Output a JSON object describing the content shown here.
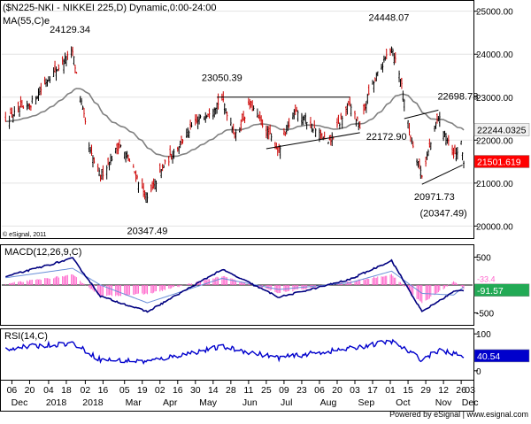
{
  "chart_data": {
    "type": "candlestick",
    "title": "($N225-NKI - NIKKEI 225,D) Dynamic,0:00-24:00",
    "indicator_label": "MA(55,C)e",
    "copyright": "© eSignal, 2011",
    "footer": "Powered by eSignal | www.esignal.com",
    "colors": {
      "up": "#000000",
      "down": "#cc0000",
      "ma": "#808080",
      "macd_line": "#000080",
      "macd_signal": "#6a8fd8",
      "macd_hist": "#ff66cc",
      "rsi_line": "#0000cc",
      "last_price_bg": "#ff0000",
      "ma_value_bg": "#f0f0f0",
      "macd_value_bg": "#22aa55",
      "rsi_value_bg": "#0000cc"
    },
    "price": {
      "ylim": [
        19740,
        25220
      ],
      "y_ticks": [
        20000,
        21000,
        22000,
        23000,
        24000,
        25000
      ],
      "y_tick_labels": [
        "20000.00",
        "21000.00",
        "22000.00",
        "23000.00",
        "24000.00",
        "25000.00"
      ],
      "last_price": 21501.619,
      "last_price_label": "21501.619",
      "ma_value": 22244.0325,
      "ma_value_label": "22244.0325",
      "annotations": [
        {
          "text": "24129.34",
          "x": "2018-01-23",
          "y": 24129.34
        },
        {
          "text": "23050.39",
          "x": "2018-05-21",
          "y": 23050.39
        },
        {
          "text": "24448.07",
          "x": "2018-10-02",
          "y": 24448.07
        },
        {
          "text": "22698.78",
          "x": "2018-11-08",
          "y": 22698.78
        },
        {
          "text": "22172.90",
          "x": "2018-09-07",
          "y": 22172.9
        },
        {
          "text": "20971.73",
          "x": "2018-10-26",
          "y": 20971.73
        },
        {
          "text": "20347.49",
          "x": "2018-03-23",
          "y": 20347.49
        },
        {
          "text": "(20347.49)",
          "x": "2018-11-26",
          "y": 20347.49
        }
      ],
      "trendlines": [
        {
          "x1": "2018-05-17",
          "y1": 23000,
          "x2": "2018-08-30",
          "y2": 23000
        },
        {
          "x1": "2018-06-25",
          "y1": 21800,
          "x2": "2018-09-07",
          "y2": 22172.9
        },
        {
          "x1": "2018-10-12",
          "y1": 22500,
          "x2": "2018-11-08",
          "y2": 22698.78
        },
        {
          "x1": "2018-10-26",
          "y1": 20971.73,
          "x2": "2018-11-27",
          "y2": 21420
        }
      ]
    },
    "macd": {
      "label": "MACD(12,26,9,C)",
      "ylim": [
        -700,
        700
      ],
      "y_ticks": [
        500,
        -500
      ],
      "y_tick_labels": [
        "500",
        "-500"
      ],
      "value": -91.57,
      "value_label": "-91.57",
      "signal_label": "-33.4"
    },
    "rsi": {
      "label": "RSI(14,C)",
      "ylim": [
        -22,
        110
      ],
      "y_ticks": [
        100,
        50,
        0
      ],
      "y_tick_labels": [
        "100",
        "50",
        "0"
      ],
      "value": 40.54,
      "value_label": "40.54"
    },
    "x_axis": {
      "days": [
        "06",
        "20",
        "04",
        "18",
        "02",
        "16",
        "05",
        "19",
        "02",
        "16",
        "30",
        "14",
        "28",
        "11",
        "25",
        "09",
        "23",
        "06",
        "20",
        "03",
        "17",
        "01",
        "15",
        "29",
        "12",
        "26"
      ],
      "day_dates": [
        "2017-12-06",
        "2017-12-20",
        "2018-01-04",
        "2018-01-18",
        "2018-02-02",
        "2018-02-16",
        "2018-03-05",
        "2018-03-19",
        "2018-04-02",
        "2018-04-16",
        "2018-04-30",
        "2018-05-14",
        "2018-05-28",
        "2018-06-11",
        "2018-06-25",
        "2018-07-09",
        "2018-07-23",
        "2018-08-06",
        "2018-08-20",
        "2018-09-03",
        "2018-09-17",
        "2018-10-01",
        "2018-10-15",
        "2018-10-29",
        "2018-11-12",
        "2018-11-26"
      ],
      "months": [
        "Dec",
        "2018",
        "2018",
        "Mar",
        "Apr",
        "May",
        "Jun",
        "Jul",
        "Aug",
        "Sep",
        "Oct",
        "Nov",
        "Dec"
      ],
      "month_dates": [
        "2017-12-12",
        "2018-01-10",
        "2018-02-08",
        "2018-03-12",
        "2018-04-10",
        "2018-05-10",
        "2018-06-12",
        "2018-07-11",
        "2018-08-13",
        "2018-09-12",
        "2018-10-11",
        "2018-11-12",
        "2018-12-03"
      ],
      "extra_day": "03",
      "extra_day_date": "2018-12-03"
    },
    "anchors": [
      {
        "date": "2017-12-01",
        "close": 22500
      },
      {
        "date": "2017-12-20",
        "close": 22800
      },
      {
        "date": "2018-01-04",
        "close": 23450
      },
      {
        "date": "2018-01-23",
        "close": 24050
      },
      {
        "date": "2018-02-06",
        "close": 21700
      },
      {
        "date": "2018-02-14",
        "close": 21150
      },
      {
        "date": "2018-03-01",
        "close": 21900
      },
      {
        "date": "2018-03-09",
        "close": 21500
      },
      {
        "date": "2018-03-23",
        "close": 20620
      },
      {
        "date": "2018-04-05",
        "close": 21400
      },
      {
        "date": "2018-04-27",
        "close": 22300
      },
      {
        "date": "2018-05-21",
        "close": 22950
      },
      {
        "date": "2018-06-01",
        "close": 22100
      },
      {
        "date": "2018-06-12",
        "close": 22850
      },
      {
        "date": "2018-07-05",
        "close": 21750
      },
      {
        "date": "2018-07-18",
        "close": 22750
      },
      {
        "date": "2018-08-13",
        "close": 21900
      },
      {
        "date": "2018-08-30",
        "close": 22850
      },
      {
        "date": "2018-09-07",
        "close": 22300
      },
      {
        "date": "2018-09-14",
        "close": 23100
      },
      {
        "date": "2018-10-02",
        "close": 24200
      },
      {
        "date": "2018-10-10",
        "close": 23300
      },
      {
        "date": "2018-10-16",
        "close": 22200
      },
      {
        "date": "2018-10-26",
        "close": 21200
      },
      {
        "date": "2018-11-08",
        "close": 22550
      },
      {
        "date": "2018-11-20",
        "close": 21600
      },
      {
        "date": "2018-11-26",
        "close": 21900
      },
      {
        "date": "2018-11-28",
        "close": 21500
      }
    ],
    "macd_anchors": [
      {
        "date": "2017-12-01",
        "macd": 150,
        "signal": 130
      },
      {
        "date": "2018-01-23",
        "macd": 480,
        "signal": 300
      },
      {
        "date": "2018-02-14",
        "macd": -200,
        "signal": 0
      },
      {
        "date": "2018-03-23",
        "macd": -480,
        "signal": -320
      },
      {
        "date": "2018-05-21",
        "macd": 280,
        "signal": 120
      },
      {
        "date": "2018-07-05",
        "macd": -220,
        "signal": -80
      },
      {
        "date": "2018-08-30",
        "macd": 100,
        "signal": 40
      },
      {
        "date": "2018-10-02",
        "macd": 440,
        "signal": 250
      },
      {
        "date": "2018-10-26",
        "macd": -480,
        "signal": -150
      },
      {
        "date": "2018-11-20",
        "macd": -120,
        "signal": -180
      },
      {
        "date": "2018-11-28",
        "macd": -92,
        "signal": -33
      }
    ],
    "rsi_anchors": [
      {
        "date": "2017-12-01",
        "rsi": 60
      },
      {
        "date": "2018-01-23",
        "rsi": 75
      },
      {
        "date": "2018-02-14",
        "rsi": 30
      },
      {
        "date": "2018-03-23",
        "rsi": 25
      },
      {
        "date": "2018-05-21",
        "rsi": 65
      },
      {
        "date": "2018-07-05",
        "rsi": 35
      },
      {
        "date": "2018-08-30",
        "rsi": 60
      },
      {
        "date": "2018-10-02",
        "rsi": 80
      },
      {
        "date": "2018-10-26",
        "rsi": 30
      },
      {
        "date": "2018-11-08",
        "rsi": 55
      },
      {
        "date": "2018-11-28",
        "rsi": 40.54
      }
    ]
  }
}
